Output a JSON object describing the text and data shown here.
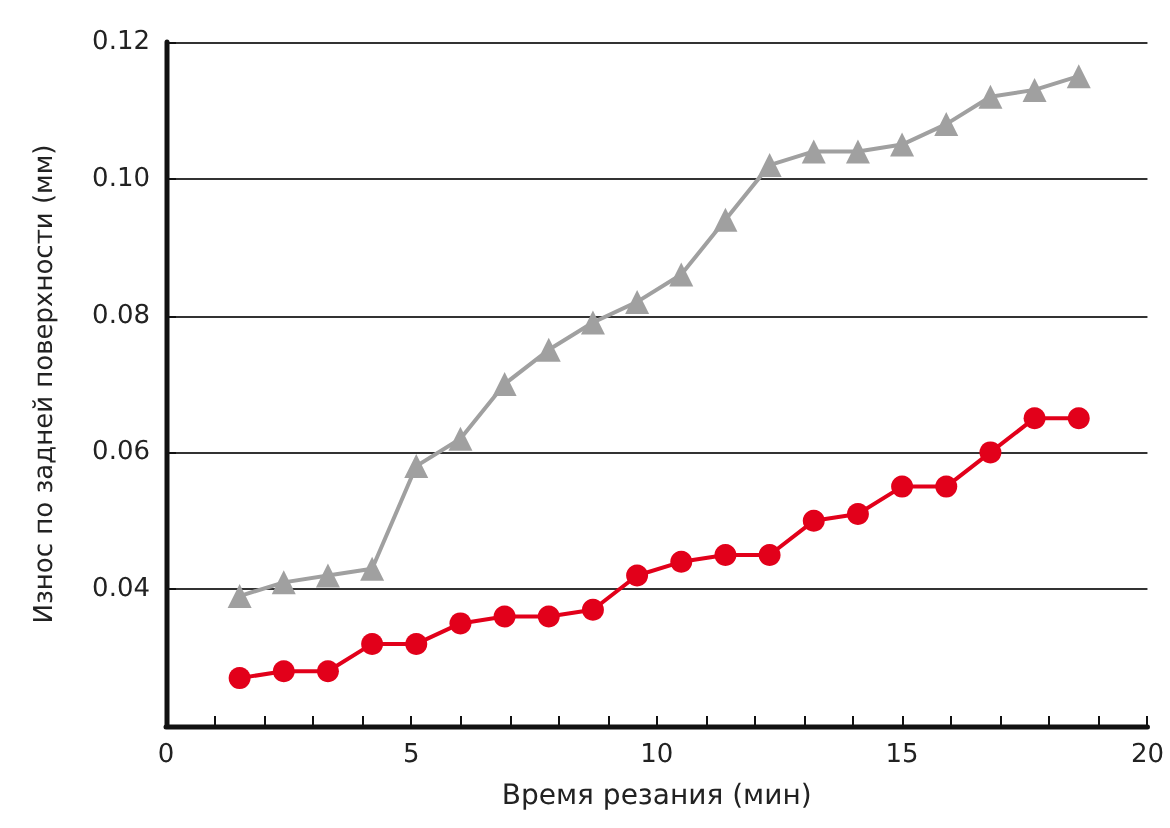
{
  "chart_data": {
    "type": "line",
    "xlabel": "Время резания (мин)",
    "ylabel": "Износ по задней поверхности (мм)",
    "x": [
      1.5,
      2.4,
      3.3,
      4.2,
      5.1,
      6.0,
      6.9,
      7.8,
      8.7,
      9.6,
      10.5,
      11.4,
      12.3,
      13.2,
      14.1,
      15.0,
      15.9,
      16.8,
      17.7,
      18.6
    ],
    "series": [
      {
        "color": "#a0a0a0",
        "marker": "triangle",
        "values": [
          0.039,
          0.041,
          0.042,
          0.043,
          0.058,
          0.062,
          0.07,
          0.075,
          0.079,
          0.082,
          0.086,
          0.094,
          0.102,
          0.104,
          0.104,
          0.105,
          0.108,
          0.112,
          0.113,
          0.115
        ]
      },
      {
        "color": "#e2001a",
        "marker": "circle",
        "values": [
          0.027,
          0.028,
          0.028,
          0.032,
          0.032,
          0.035,
          0.036,
          0.036,
          0.037,
          0.042,
          0.044,
          0.045,
          0.045,
          0.05,
          0.051,
          0.055,
          0.055,
          0.06,
          0.065,
          0.065
        ]
      }
    ],
    "xlim": [
      0,
      20
    ],
    "xticks": [
      0,
      {
        "value": 1,
        "label": null
      },
      {
        "value": 2,
        "label": null
      },
      {
        "value": 3,
        "label": null
      },
      {
        "value": 4,
        "label": null
      },
      5,
      {
        "value": 6,
        "label": null
      },
      {
        "value": 7,
        "label": null
      },
      {
        "value": 8,
        "label": null
      },
      {
        "value": 9,
        "label": null
      },
      10,
      {
        "value": 11,
        "label": null
      },
      {
        "value": 12,
        "label": null
      },
      {
        "value": 13,
        "label": null
      },
      {
        "value": 14,
        "label": null
      },
      15,
      {
        "value": 16,
        "label": null
      },
      {
        "value": 17,
        "label": null
      },
      {
        "value": 18,
        "label": null
      },
      {
        "value": 19,
        "label": null
      },
      20
    ],
    "ylim": [
      0.02,
      0.12
    ],
    "yticks": [
      0.04,
      0.06,
      0.08,
      {
        "value": 0.1,
        "label": "0.10"
      },
      0.12
    ],
    "grid": "y",
    "line_style": "solid"
  }
}
